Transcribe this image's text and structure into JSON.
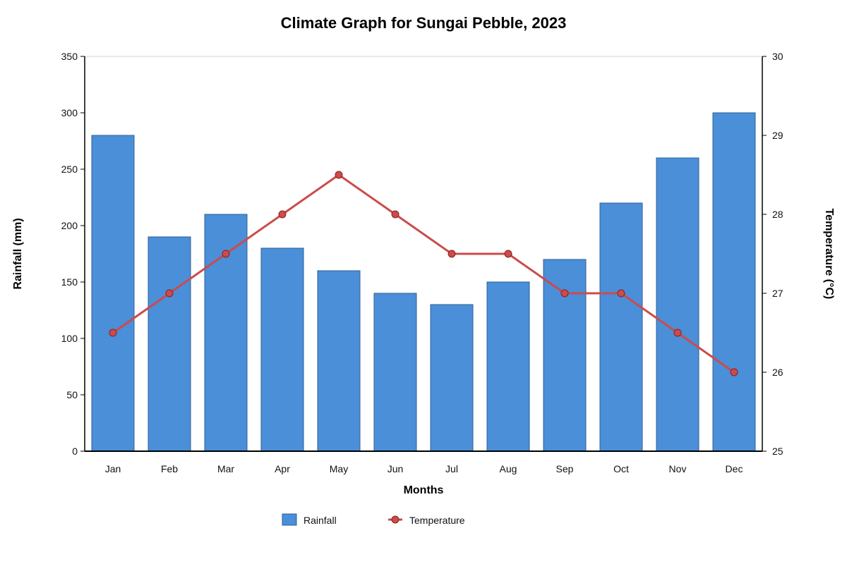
{
  "chart_data": {
    "type": "bar",
    "title": "Climate Graph for Sungai Pebble, 2023",
    "xlabel": "Months",
    "ylabel": "Rainfall (mm)",
    "y2label": "Temperature (°C)",
    "categories": [
      "Jan",
      "Feb",
      "Mar",
      "Apr",
      "May",
      "Jun",
      "Jul",
      "Aug",
      "Sep",
      "Oct",
      "Nov",
      "Dec"
    ],
    "series": [
      {
        "name": "Rainfall",
        "type": "bar",
        "axis": "left",
        "color": "#4a8fd8",
        "values": [
          280,
          190,
          210,
          180,
          160,
          140,
          130,
          150,
          170,
          220,
          260,
          300
        ]
      },
      {
        "name": "Temperature",
        "type": "line",
        "axis": "right",
        "color": "#cc4b4b",
        "values": [
          26.5,
          27,
          27.5,
          28,
          28.5,
          28,
          27.5,
          27.5,
          27,
          27,
          26.5,
          26
        ]
      }
    ],
    "ylim": [
      0,
      350
    ],
    "yticks": [
      0,
      50,
      100,
      150,
      200,
      250,
      300,
      350
    ],
    "y2lim": [
      25,
      30
    ],
    "y2ticks": [
      25,
      26,
      27,
      28,
      29,
      30
    ],
    "grid": false,
    "legend_position": "bottom"
  }
}
